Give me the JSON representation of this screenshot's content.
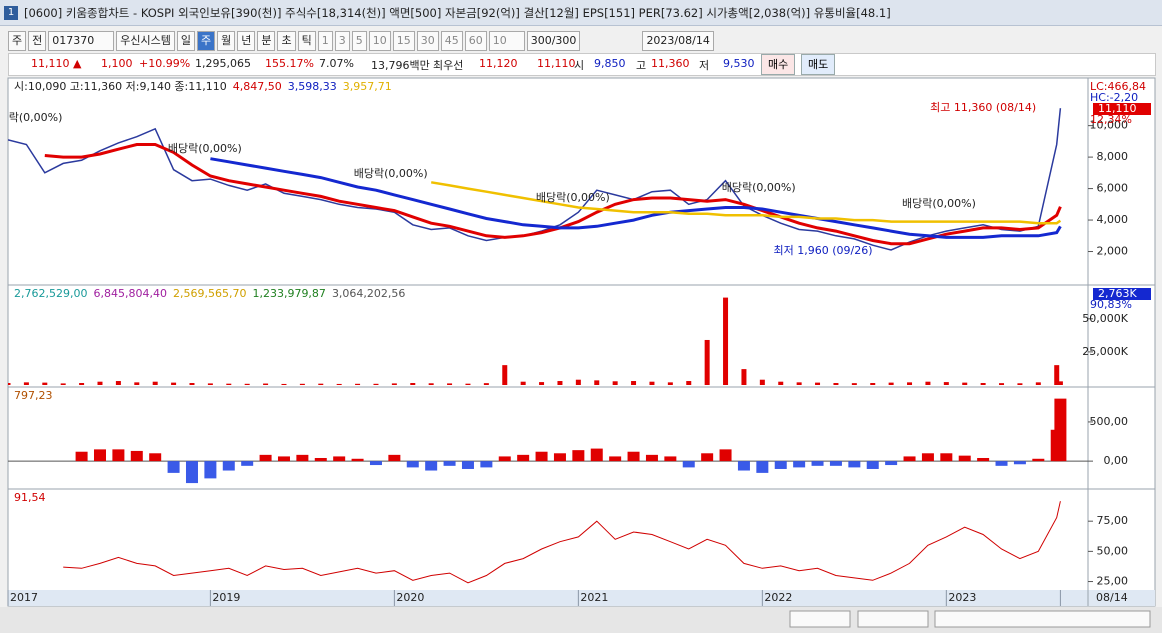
{
  "window": {
    "id": "1",
    "title": "[0600] 키움종합차트 - KOSPI 외국인보유[390(천)] 주식수[18,314(천)] 액면[500] 자본금[92(억)] 결산[12월] EPS[151] PER[73.62] 시가총액[2,038(억)] 유통비율[48.1]"
  },
  "toolbar": {
    "market": "주",
    "mode": "전",
    "code": "017370",
    "name": "우신시스템",
    "periods": [
      "일",
      "주",
      "월",
      "년",
      "분",
      "초",
      "틱"
    ],
    "active_period": 1,
    "intervals": [
      "1",
      "3",
      "5",
      "10",
      "15",
      "30",
      "45",
      "60"
    ],
    "count": "10",
    "range": "300/300",
    "date": "2023/08/14"
  },
  "quote": {
    "items": [
      {
        "text": "11,110 ▲",
        "color": "#d00000"
      },
      {
        "text": "1,100",
        "color": "#d00000"
      },
      {
        "text": "+10.99%",
        "color": "#d00000"
      },
      {
        "text": "1,295,065",
        "color": "#222222"
      },
      {
        "text": "155.17%",
        "color": "#d00000"
      },
      {
        "text": "7.07%",
        "color": "#222222"
      },
      {
        "text": "13,796백만",
        "color": "#222222"
      },
      {
        "text": "최우선",
        "color": "#222222"
      },
      {
        "text": "11,120",
        "color": "#d00000"
      },
      {
        "text": "11,110",
        "color": "#d00000"
      },
      {
        "text": "시",
        "color": "#222222"
      },
      {
        "text": "9,850",
        "color": "#1020c0"
      },
      {
        "text": "고",
        "color": "#222222"
      },
      {
        "text": "11,360",
        "color": "#d00000"
      },
      {
        "text": "저",
        "color": "#222222"
      },
      {
        "text": "9,530",
        "color": "#1020c0"
      }
    ],
    "buy": "매수",
    "sell": "매도"
  },
  "chart_data": [
    {
      "type": "line",
      "legend": [
        {
          "text": "시:10,090 고:11,360 저:9,140 종:11,110",
          "color": "#222222"
        },
        {
          "text": "4,847,50",
          "color": "#d00000"
        },
        {
          "text": "3,598,33",
          "color": "#1020c0"
        },
        {
          "text": "3,957,71",
          "color": "#e0b000"
        }
      ],
      "axis_labels": [
        {
          "text": "LC:466,84",
          "color": "#d00000"
        },
        {
          "text": "HC:-2,20",
          "color": "#1020c0"
        },
        {
          "text": "11,110",
          "color": "#d00000",
          "box": true
        },
        {
          "text": "12,34%",
          "color": "#d00000"
        }
      ],
      "xlim": [
        2017.9,
        2023.77
      ],
      "ylim": [
        0,
        12900
      ],
      "yticks": [
        {
          "value": 2000,
          "label": "2,000"
        },
        {
          "value": 4000,
          "label": "4,000"
        },
        {
          "value": 6000,
          "label": "6,000"
        },
        {
          "value": 8000,
          "label": "8,000"
        },
        {
          "value": 10000,
          "label": "10,000"
        }
      ],
      "x": [
        2017.9,
        2018.0,
        2018.1,
        2018.2,
        2018.3,
        2018.4,
        2018.5,
        2018.6,
        2018.7,
        2018.8,
        2018.9,
        2019.0,
        2019.1,
        2019.2,
        2019.3,
        2019.4,
        2019.5,
        2019.6,
        2019.7,
        2019.8,
        2019.9,
        2020.0,
        2020.1,
        2020.2,
        2020.3,
        2020.4,
        2020.5,
        2020.6,
        2020.7,
        2020.8,
        2020.9,
        2021.0,
        2021.1,
        2021.2,
        2021.3,
        2021.4,
        2021.5,
        2021.6,
        2021.7,
        2021.8,
        2021.9,
        2022.0,
        2022.1,
        2022.2,
        2022.3,
        2022.4,
        2022.5,
        2022.6,
        2022.7,
        2022.8,
        2022.9,
        2023.0,
        2023.1,
        2023.2,
        2023.3,
        2023.4,
        2023.5,
        2023.6,
        2023.62
      ],
      "series": [
        {
          "color": "#2b3a9e",
          "width": 1.5,
          "values": [
            9100,
            8800,
            7000,
            7600,
            7800,
            8400,
            8900,
            9300,
            9800,
            7200,
            6500,
            6600,
            6200,
            5900,
            6300,
            5700,
            5500,
            5300,
            5000,
            4800,
            4700,
            4500,
            3700,
            3400,
            3500,
            3000,
            2700,
            2900,
            3000,
            3300,
            3700,
            4500,
            5900,
            5600,
            5300,
            5800,
            5900,
            5000,
            5300,
            6500,
            4900,
            4300,
            3800,
            3400,
            3300,
            3000,
            2800,
            2400,
            2100,
            2600,
            3000,
            3300,
            3500,
            3700,
            3400,
            3300,
            3600,
            8800,
            11110
          ]
        },
        {
          "color": "#e00000",
          "width": 3,
          "values": [
            null,
            null,
            8100,
            8000,
            8000,
            8200,
            8500,
            8800,
            8800,
            8300,
            7500,
            6800,
            6500,
            6300,
            6100,
            5900,
            5700,
            5500,
            5200,
            5000,
            4800,
            4600,
            4200,
            3800,
            3600,
            3300,
            3000,
            2900,
            3000,
            3200,
            3500,
            3900,
            4500,
            5000,
            5300,
            5400,
            5400,
            5300,
            5200,
            5300,
            5000,
            4600,
            4200,
            3800,
            3500,
            3300,
            3000,
            2700,
            2500,
            2500,
            2800,
            3100,
            3300,
            3500,
            3500,
            3400,
            3500,
            4300,
            4847.5
          ]
        },
        {
          "color": "#1428d0",
          "width": 3,
          "values": [
            null,
            null,
            null,
            null,
            null,
            null,
            null,
            null,
            null,
            null,
            null,
            7900,
            7700,
            7500,
            7300,
            7100,
            6900,
            6700,
            6400,
            6100,
            5900,
            5600,
            5300,
            5000,
            4700,
            4400,
            4100,
            3900,
            3700,
            3600,
            3500,
            3500,
            3600,
            3800,
            4000,
            4300,
            4500,
            4600,
            4700,
            4800,
            4800,
            4700,
            4500,
            4300,
            4100,
            3900,
            3700,
            3500,
            3300,
            3100,
            3000,
            2900,
            2900,
            2900,
            3000,
            3000,
            3000,
            3200,
            3598.33
          ]
        },
        {
          "color": "#f0c000",
          "width": 2.5,
          "values": [
            null,
            null,
            null,
            null,
            null,
            null,
            null,
            null,
            null,
            null,
            null,
            null,
            null,
            null,
            null,
            null,
            null,
            null,
            null,
            null,
            null,
            null,
            null,
            6400,
            6200,
            6000,
            5800,
            5600,
            5400,
            5200,
            5000,
            4800,
            4700,
            4600,
            4500,
            4500,
            4500,
            4400,
            4400,
            4300,
            4300,
            4300,
            4200,
            4200,
            4100,
            4100,
            4000,
            4000,
            3900,
            3900,
            3900,
            3900,
            3900,
            3900,
            3900,
            3900,
            3800,
            3800,
            3957.71
          ]
        }
      ],
      "annotations": [
        {
          "text": "락(0,00%)",
          "x": 2018.05,
          "y": 10485,
          "color": "#222222"
        },
        {
          "text": "배당락(0,00%)",
          "x": 2018.97,
          "y": 8515,
          "color": "#222222"
        },
        {
          "text": "배당락(0,00%)",
          "x": 2019.98,
          "y": 6927,
          "color": "#222222"
        },
        {
          "text": "배당락(0,00%)",
          "x": 2020.97,
          "y": 5400,
          "color": "#222222"
        },
        {
          "text": "배당락(0,00%)",
          "x": 2021.98,
          "y": 6037,
          "color": "#222222"
        },
        {
          "text": "배당락(0,00%)",
          "x": 2022.96,
          "y": 5020,
          "color": "#222222"
        },
        {
          "text": "최고 11,360 (08/14)",
          "x": 2023.2,
          "y": 11120,
          "color": "#d00000"
        },
        {
          "text": "최저 1,960 (09/26)",
          "x": 2022.33,
          "y": 2033,
          "color": "#1020c0"
        }
      ]
    },
    {
      "type": "bar",
      "legend": [
        {
          "text": "2,762,529,00",
          "color": "#1a9a9a"
        },
        {
          "text": "6,845,804,40",
          "color": "#a020a0"
        },
        {
          "text": "2,569,565,70",
          "color": "#d0a000"
        },
        {
          "text": "1,233,979,87",
          "color": "#208020"
        },
        {
          "text": "3,064,202,56",
          "color": "#555555"
        }
      ],
      "axis_labels": [
        {
          "text": "2,763K",
          "color": "#ffffff",
          "box": true
        },
        {
          "text": "90,83%",
          "color": "#1020c0"
        }
      ],
      "xlim": [
        2017.9,
        2023.77
      ],
      "ylim": [
        0,
        74000
      ],
      "yticks": [
        {
          "value": 25000,
          "label": "25,000K"
        },
        {
          "value": 50000,
          "label": "50,000K"
        }
      ],
      "x": [
        2017.9,
        2018.0,
        2018.1,
        2018.2,
        2018.3,
        2018.4,
        2018.5,
        2018.6,
        2018.7,
        2018.8,
        2018.9,
        2019.0,
        2019.1,
        2019.2,
        2019.3,
        2019.4,
        2019.5,
        2019.6,
        2019.7,
        2019.8,
        2019.9,
        2020.0,
        2020.1,
        2020.2,
        2020.3,
        2020.4,
        2020.5,
        2020.6,
        2020.7,
        2020.8,
        2020.9,
        2021.0,
        2021.1,
        2021.2,
        2021.3,
        2021.4,
        2021.5,
        2021.6,
        2021.7,
        2021.8,
        2021.9,
        2022.0,
        2022.1,
        2022.2,
        2022.3,
        2022.4,
        2022.5,
        2022.6,
        2022.7,
        2022.8,
        2022.9,
        2023.0,
        2023.1,
        2023.2,
        2023.3,
        2023.4,
        2023.5,
        2023.6,
        2023.62
      ],
      "series": [
        {
          "color": "#e00000",
          "negative_color": "#1428d0",
          "values": [
            1500,
            2000,
            1800,
            1200,
            1500,
            2500,
            3000,
            2000,
            2500,
            1800,
            1500,
            1200,
            1000,
            900,
            1100,
            800,
            900,
            1000,
            800,
            900,
            900,
            1200,
            1500,
            1300,
            1200,
            1000,
            1400,
            15000,
            2500,
            2200,
            3000,
            4000,
            3500,
            2800,
            3000,
            2500,
            2000,
            3000,
            34000,
            66000,
            12000,
            4000,
            2500,
            2000,
            1800,
            1500,
            1400,
            1500,
            1800,
            2000,
            2500,
            2200,
            1800,
            1500,
            1400,
            1300,
            2000,
            15000,
            2763
          ]
        }
      ]
    },
    {
      "type": "bar",
      "legend": [
        {
          "text": "797,23",
          "color": "#b05000"
        }
      ],
      "axis_labels": [],
      "xlim": [
        2017.9,
        2023.77
      ],
      "ylim": [
        -330,
        920
      ],
      "yticks": [
        {
          "value": 0,
          "label": "0,00"
        },
        {
          "value": 500,
          "label": "500,00"
        }
      ],
      "x": [
        2017.9,
        2018.0,
        2018.1,
        2018.2,
        2018.3,
        2018.4,
        2018.5,
        2018.6,
        2018.7,
        2018.8,
        2018.9,
        2019.0,
        2019.1,
        2019.2,
        2019.3,
        2019.4,
        2019.5,
        2019.6,
        2019.7,
        2019.8,
        2019.9,
        2020.0,
        2020.1,
        2020.2,
        2020.3,
        2020.4,
        2020.5,
        2020.6,
        2020.7,
        2020.8,
        2020.9,
        2021.0,
        2021.1,
        2021.2,
        2021.3,
        2021.4,
        2021.5,
        2021.6,
        2021.7,
        2021.8,
        2021.9,
        2022.0,
        2022.1,
        2022.2,
        2022.3,
        2022.4,
        2022.5,
        2022.6,
        2022.7,
        2022.8,
        2022.9,
        2023.0,
        2023.1,
        2023.2,
        2023.3,
        2023.4,
        2023.5,
        2023.6,
        2023.62
      ],
      "series": [
        {
          "color": "#e00000",
          "negative_color": "#3a5ae8",
          "values": [
            null,
            null,
            null,
            null,
            120,
            150,
            150,
            130,
            100,
            -150,
            -280,
            -220,
            -120,
            -60,
            80,
            60,
            80,
            40,
            60,
            30,
            -50,
            80,
            -80,
            -120,
            -60,
            -100,
            -80,
            60,
            80,
            120,
            100,
            140,
            160,
            60,
            120,
            80,
            60,
            -80,
            100,
            150,
            -120,
            -150,
            -100,
            -80,
            -60,
            -60,
            -80,
            -100,
            -50,
            60,
            100,
            100,
            70,
            40,
            -60,
            -40,
            30,
            400,
            797.23
          ]
        }
      ]
    },
    {
      "type": "line",
      "legend": [
        {
          "text": "91,54",
          "color": "#d00000"
        }
      ],
      "axis_labels": [],
      "xlim": [
        2017.9,
        2023.77
      ],
      "ylim": [
        18,
        100
      ],
      "yticks": [
        {
          "value": 25,
          "label": "25,00"
        },
        {
          "value": 50,
          "label": "50,00"
        },
        {
          "value": 75,
          "label": "75,00"
        }
      ],
      "xticks": [
        {
          "value": 2017.9,
          "label": "2017"
        },
        2019,
        2020,
        2021,
        2022,
        2023,
        {
          "value": 2023.62,
          "label": "08/14"
        }
      ],
      "x": [
        2017.9,
        2018.0,
        2018.1,
        2018.2,
        2018.3,
        2018.4,
        2018.5,
        2018.6,
        2018.7,
        2018.8,
        2018.9,
        2019.0,
        2019.1,
        2019.2,
        2019.3,
        2019.4,
        2019.5,
        2019.6,
        2019.7,
        2019.8,
        2019.9,
        2020.0,
        2020.1,
        2020.2,
        2020.3,
        2020.4,
        2020.5,
        2020.6,
        2020.7,
        2020.8,
        2020.9,
        2021.0,
        2021.1,
        2021.2,
        2021.3,
        2021.4,
        2021.5,
        2021.6,
        2021.7,
        2021.8,
        2021.9,
        2022.0,
        2022.1,
        2022.2,
        2022.3,
        2022.4,
        2022.5,
        2022.6,
        2022.7,
        2022.8,
        2022.9,
        2023.0,
        2023.1,
        2023.2,
        2023.3,
        2023.4,
        2023.5,
        2023.6,
        2023.62
      ],
      "series": [
        {
          "color": "#d00000",
          "width": 1,
          "values": [
            null,
            null,
            null,
            37,
            36,
            40,
            45,
            40,
            38,
            30,
            32,
            34,
            36,
            30,
            38,
            35,
            36,
            30,
            33,
            36,
            32,
            34,
            26,
            30,
            32,
            24,
            30,
            40,
            44,
            52,
            58,
            62,
            75,
            60,
            66,
            64,
            58,
            52,
            60,
            55,
            40,
            36,
            38,
            34,
            36,
            30,
            28,
            26,
            32,
            40,
            55,
            62,
            70,
            64,
            52,
            44,
            50,
            78,
            91.54
          ]
        }
      ]
    }
  ]
}
